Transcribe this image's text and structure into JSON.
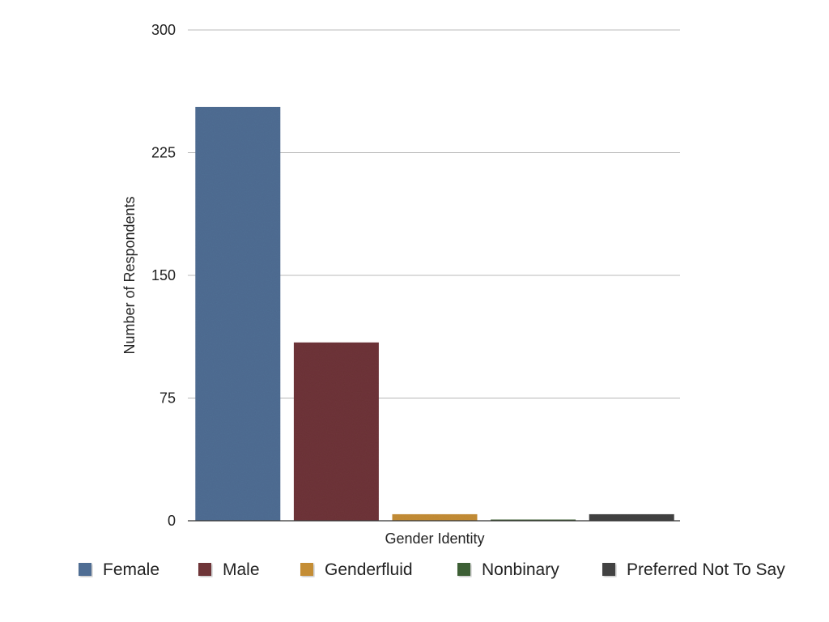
{
  "chart_data": {
    "type": "bar",
    "title": "",
    "xlabel": "Gender Identity",
    "ylabel": "Number of Respondents",
    "ylim": [
      0,
      300
    ],
    "yticks": [
      0,
      75,
      150,
      225,
      300
    ],
    "grid": true,
    "legend_position": "bottom",
    "series": [
      {
        "name": "Female",
        "value": 253,
        "color": "#4f6d93"
      },
      {
        "name": "Male",
        "value": 109,
        "color": "#6e3438"
      },
      {
        "name": "Genderfluid",
        "value": 4,
        "color": "#c48d35"
      },
      {
        "name": "Nonbinary",
        "value": 0.5,
        "color": "#3d5e34"
      },
      {
        "name": "Preferred Not To Say",
        "value": 4,
        "color": "#424242"
      }
    ]
  }
}
